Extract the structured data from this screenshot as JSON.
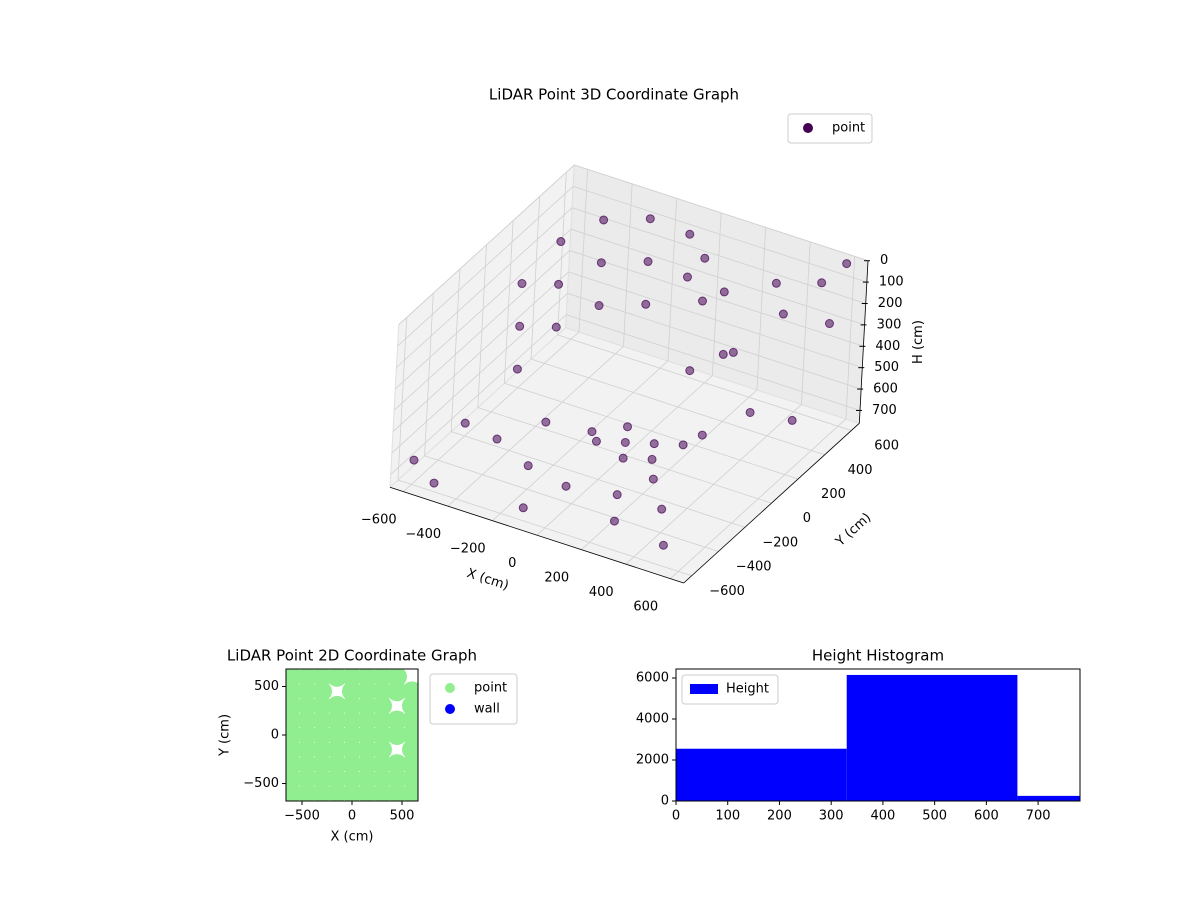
{
  "chart_data": [
    {
      "type": "scatter3d",
      "title": "LiDAR Point 3D Coordinate Graph",
      "xlabel": "X (cm)",
      "ylabel": "Y (cm)",
      "zlabel": "H (cm)",
      "xlim": [
        -660,
        660
      ],
      "ylim": [
        -660,
        660
      ],
      "zlim": [
        760,
        0
      ],
      "xticks": [
        {
          "value": -600,
          "label": "−600"
        },
        {
          "value": -400,
          "label": "−400"
        },
        {
          "value": -200,
          "label": "−200"
        },
        0,
        200,
        400,
        600
      ],
      "yticks": [
        {
          "value": -600,
          "label": "−600"
        },
        {
          "value": -400,
          "label": "−400"
        },
        {
          "value": -200,
          "label": "−200"
        },
        0,
        200,
        400,
        600
      ],
      "zticks": [
        0,
        100,
        200,
        300,
        400,
        500,
        600,
        700
      ],
      "grid": true,
      "legend": "upper right",
      "series": [
        {
          "name": "point",
          "color": "#440154",
          "x": [
            -500,
            -500,
            -500,
            -400,
            -400,
            -400,
            -250,
            -250,
            -250,
            -550,
            -550,
            -550,
            -100,
            -100,
            0,
            0,
            150,
            0,
            100,
            -100,
            50,
            -50,
            150,
            -150,
            200,
            300,
            400,
            500,
            550,
            600,
            450,
            300,
            200,
            0,
            -200,
            -400,
            -600,
            -650,
            -500,
            600,
            650,
            350,
            100,
            -300,
            250,
            500,
            -100,
            400,
            620
          ],
          "y": [
            300,
            300,
            300,
            450,
            450,
            450,
            550,
            550,
            550,
            100,
            100,
            100,
            600,
            600,
            550,
            550,
            450,
            0,
            50,
            -50,
            -100,
            100,
            -50,
            0,
            100,
            200,
            100,
            300,
            500,
            600,
            -200,
            -300,
            -400,
            -450,
            -400,
            -300,
            -200,
            -500,
            -600,
            -100,
            400,
            500,
            300,
            -100,
            -500,
            -550,
            -600,
            -400,
            200
          ],
          "h": [
            100,
            300,
            500,
            50,
            250,
            450,
            50,
            250,
            450,
            200,
            400,
            600,
            100,
            300,
            150,
            350,
            200,
            700,
            700,
            700,
            700,
            700,
            700,
            700,
            700,
            300,
            200,
            100,
            50,
            0,
            400,
            600,
            650,
            650,
            650,
            650,
            700,
            720,
            720,
            300,
            150,
            120,
            500,
            650,
            700,
            700,
            700,
            650,
            500
          ]
        }
      ]
    },
    {
      "type": "scatter",
      "title": "LiDAR Point 2D Coordinate Graph",
      "xlabel": "X (cm)",
      "ylabel": "Y (cm)",
      "xlim": [
        -660,
        660
      ],
      "ylim": [
        -680,
        680
      ],
      "xticks": [
        {
          "value": -500,
          "label": "−500"
        },
        0,
        500
      ],
      "yticks": [
        {
          "value": -500,
          "label": "−500"
        },
        0,
        500
      ],
      "legend": "outside right",
      "series": [
        {
          "name": "point",
          "color": "#90ee90",
          "x": [
            -600,
            -450,
            -300,
            -150,
            0,
            150,
            300,
            450,
            -600,
            -450,
            -300,
            0,
            150,
            300,
            450,
            600,
            -600,
            -450,
            -300,
            -150,
            0,
            150,
            300,
            600,
            -600,
            -450,
            -300,
            -150,
            0,
            150,
            300,
            450,
            600,
            -600,
            -450,
            -300,
            -150,
            0,
            150,
            300,
            450,
            600,
            -600,
            -450,
            -300,
            -150,
            0,
            150,
            300,
            600,
            -600,
            -450,
            -300,
            -150,
            0,
            150,
            300,
            450,
            600,
            -600,
            -450,
            -300,
            -150,
            0,
            150,
            300,
            450,
            600,
            -600,
            -450,
            -300,
            -150,
            0,
            150,
            300,
            450,
            600
          ],
          "y": [
            600,
            600,
            600,
            600,
            600,
            600,
            600,
            600,
            450,
            450,
            450,
            450,
            450,
            450,
            450,
            450,
            300,
            300,
            300,
            300,
            300,
            300,
            300,
            300,
            150,
            150,
            150,
            150,
            150,
            150,
            150,
            150,
            150,
            0,
            0,
            0,
            0,
            0,
            0,
            0,
            0,
            0,
            -150,
            -150,
            -150,
            -150,
            -150,
            -150,
            -150,
            -150,
            -300,
            -300,
            -300,
            -300,
            -300,
            -300,
            -300,
            -300,
            -300,
            -450,
            -450,
            -450,
            -450,
            -450,
            -450,
            -450,
            -450,
            -450,
            -600,
            -600,
            -600,
            -600,
            -600,
            -600,
            -600,
            -600,
            -600
          ]
        },
        {
          "name": "wall",
          "color": "#0000ff",
          "x": [],
          "y": []
        }
      ]
    },
    {
      "type": "histogram",
      "title": "Height Histogram",
      "xlim": [
        0,
        781
      ],
      "ylim": [
        0,
        6440
      ],
      "xticks": [
        0,
        100,
        200,
        300,
        400,
        500,
        600,
        700
      ],
      "yticks": [
        0,
        2000,
        4000,
        6000
      ],
      "legend": "upper left",
      "series": [
        {
          "name": "Height",
          "color": "#0000ff",
          "bins": [
            0,
            330,
            660,
            781
          ],
          "values": [
            2550,
            6150,
            250
          ]
        }
      ]
    }
  ]
}
